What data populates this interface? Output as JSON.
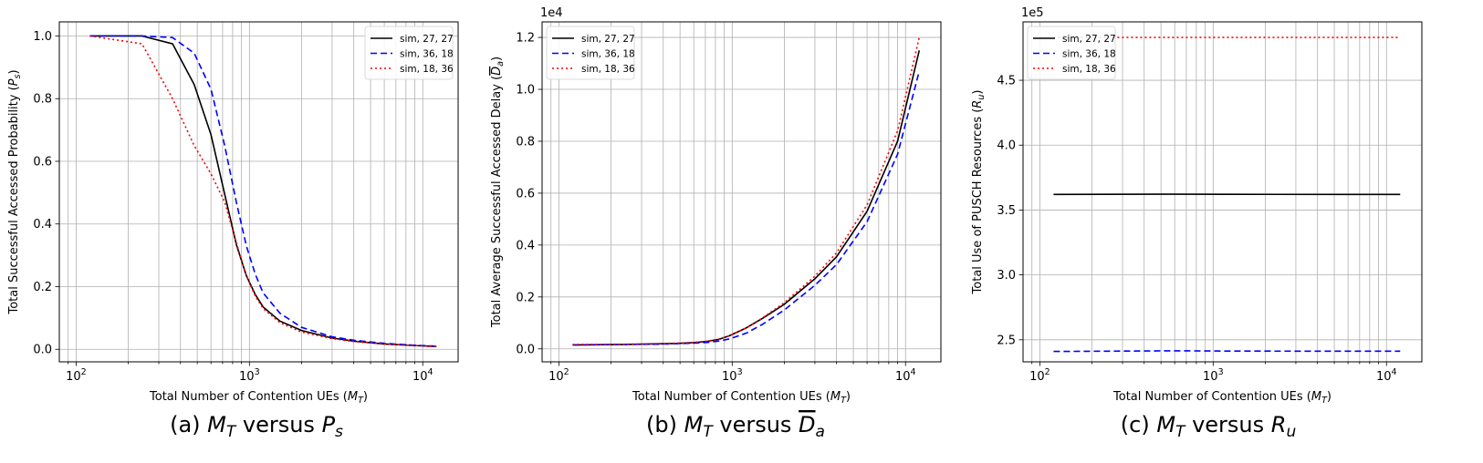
{
  "chart_data": [
    {
      "type": "line",
      "caption": {
        "prefix": "(a) ",
        "a": "M",
        "a_sub": "T",
        "mid": " versus ",
        "b": "P",
        "b_sub": "s",
        "overline_b": false
      },
      "xlabel": {
        "text": "Total Number of Contention UEs (",
        "var": "M",
        "sub": "T",
        "close": ")"
      },
      "ylabel": {
        "text": "Total Successful Accessed Probability (",
        "var": "P",
        "sub": "s",
        "close": ")",
        "overline": false
      },
      "xscale": "log",
      "xlim": [
        80,
        16000
      ],
      "ylim": [
        -0.04,
        1.045
      ],
      "yticks": [
        0.0,
        0.2,
        0.4,
        0.6,
        0.8,
        1.0
      ],
      "ytick_labels": [
        "0.0",
        "0.2",
        "0.4",
        "0.6",
        "0.8",
        "1.0"
      ],
      "xtick_labels": [
        {
          "base": "10",
          "exp": "2"
        },
        {
          "base": "10",
          "exp": "3"
        },
        {
          "base": "10",
          "exp": "4"
        }
      ],
      "y_offset": "",
      "grid": true,
      "legend": "top-right",
      "series": [
        {
          "name": "sim, 27, 27",
          "color": "#000000",
          "dash": "solid",
          "x": [
            120,
            240,
            360,
            480,
            600,
            720,
            840,
            960,
            1080,
            1200,
            1500,
            2000,
            3000,
            4000,
            6000,
            9000,
            12000
          ],
          "y": [
            1.0,
            1.0,
            0.975,
            0.845,
            0.685,
            0.495,
            0.335,
            0.235,
            0.175,
            0.135,
            0.09,
            0.06,
            0.036,
            0.026,
            0.017,
            0.012,
            0.009
          ]
        },
        {
          "name": "sim, 36, 18",
          "color": "#0000ff",
          "dash": "dashed",
          "x": [
            120,
            240,
            360,
            480,
            600,
            720,
            840,
            960,
            1080,
            1200,
            1500,
            2000,
            3000,
            4000,
            6000,
            9000,
            12000
          ],
          "y": [
            1.0,
            1.0,
            0.995,
            0.945,
            0.83,
            0.65,
            0.47,
            0.33,
            0.24,
            0.18,
            0.115,
            0.07,
            0.04,
            0.029,
            0.019,
            0.013,
            0.01
          ]
        },
        {
          "name": "sim, 18, 36",
          "color": "#ff0000",
          "dash": "dotted",
          "x": [
            120,
            240,
            360,
            480,
            600,
            720,
            840,
            960,
            1080,
            1200,
            1500,
            2000,
            3000,
            4000,
            6000,
            9000,
            12000
          ],
          "y": [
            1.0,
            0.975,
            0.8,
            0.65,
            0.56,
            0.47,
            0.34,
            0.235,
            0.17,
            0.13,
            0.085,
            0.055,
            0.034,
            0.025,
            0.017,
            0.012,
            0.009
          ]
        }
      ]
    },
    {
      "type": "line",
      "caption": {
        "prefix": "(b) ",
        "a": "M",
        "a_sub": "T",
        "mid": " versus ",
        "b": "D",
        "b_sub": "a",
        "overline_b": true
      },
      "xlabel": {
        "text": "Total Number of Contention UEs (",
        "var": "M",
        "sub": "T",
        "close": ")"
      },
      "ylabel": {
        "text": "Total Average Successful Accessed Delay (",
        "var": "D",
        "sub": "a",
        "close": ")",
        "overline": true
      },
      "xscale": "log",
      "xlim": [
        80,
        16000
      ],
      "ylim": [
        -0.05,
        1.26
      ],
      "yticks": [
        0.0,
        0.2,
        0.4,
        0.6,
        0.8,
        1.0,
        1.2
      ],
      "ytick_labels": [
        "0.0",
        "0.2",
        "0.4",
        "0.6",
        "0.8",
        "1.0",
        "1.2"
      ],
      "xtick_labels": [
        {
          "base": "10",
          "exp": "2"
        },
        {
          "base": "10",
          "exp": "3"
        },
        {
          "base": "10",
          "exp": "4"
        }
      ],
      "y_offset": "1e4",
      "grid": true,
      "legend": "top-left",
      "series": [
        {
          "name": "sim, 27, 27",
          "color": "#000000",
          "dash": "solid",
          "x": [
            120,
            240,
            360,
            480,
            600,
            720,
            840,
            960,
            1200,
            1500,
            2000,
            3000,
            4000,
            6000,
            9000,
            12000
          ],
          "y": [
            0.015,
            0.017,
            0.019,
            0.021,
            0.024,
            0.029,
            0.037,
            0.05,
            0.08,
            0.118,
            0.172,
            0.27,
            0.355,
            0.53,
            0.8,
            1.15
          ]
        },
        {
          "name": "sim, 36, 18",
          "color": "#0000ff",
          "dash": "dashed",
          "x": [
            120,
            240,
            360,
            480,
            600,
            720,
            840,
            960,
            1200,
            1500,
            2000,
            3000,
            4000,
            6000,
            9000,
            12000
          ],
          "y": [
            0.015,
            0.017,
            0.018,
            0.02,
            0.022,
            0.025,
            0.03,
            0.038,
            0.06,
            0.095,
            0.15,
            0.245,
            0.325,
            0.49,
            0.75,
            1.07
          ]
        },
        {
          "name": "sim, 18, 36",
          "color": "#ff0000",
          "dash": "dotted",
          "x": [
            120,
            240,
            360,
            480,
            600,
            720,
            840,
            960,
            1200,
            1500,
            2000,
            3000,
            4000,
            6000,
            9000,
            12000
          ],
          "y": [
            0.017,
            0.018,
            0.02,
            0.022,
            0.025,
            0.03,
            0.038,
            0.05,
            0.08,
            0.12,
            0.178,
            0.28,
            0.37,
            0.555,
            0.84,
            1.2
          ]
        }
      ]
    },
    {
      "type": "line",
      "caption": {
        "prefix": "(c) ",
        "a": "M",
        "a_sub": "T",
        "mid": " versus ",
        "b": "R",
        "b_sub": "u",
        "overline_b": false
      },
      "xlabel": {
        "text": "Total Number of Contention UEs (",
        "var": "M",
        "sub": "T",
        "close": ")"
      },
      "ylabel": {
        "text": "Total Use of PUSCH Resources (",
        "var": "R",
        "sub": "u",
        "close": ")",
        "overline": false
      },
      "xscale": "log",
      "xlim": [
        80,
        16000
      ],
      "ylim": [
        2.33,
        4.95
      ],
      "yticks": [
        2.5,
        3.0,
        3.5,
        4.0,
        4.5
      ],
      "ytick_labels": [
        "2.5",
        "3.0",
        "3.5",
        "4.0",
        "4.5"
      ],
      "xtick_labels": [
        {
          "base": "10",
          "exp": "2"
        },
        {
          "base": "10",
          "exp": "3"
        },
        {
          "base": "10",
          "exp": "4"
        }
      ],
      "y_offset": "1e5",
      "grid": true,
      "legend": "top-left",
      "series": [
        {
          "name": "sim, 27, 27",
          "color": "#000000",
          "dash": "solid",
          "x": [
            120,
            600,
            1200,
            6000,
            12000
          ],
          "y": [
            3.62,
            3.622,
            3.621,
            3.62,
            3.62
          ]
        },
        {
          "name": "sim, 36, 18",
          "color": "#0000ff",
          "dash": "dashed",
          "x": [
            120,
            600,
            1200,
            6000,
            12000
          ],
          "y": [
            2.41,
            2.415,
            2.413,
            2.412,
            2.412
          ]
        },
        {
          "name": "sim, 18, 36",
          "color": "#ff0000",
          "dash": "dotted",
          "x": [
            120,
            600,
            1200,
            6000,
            12000
          ],
          "y": [
            4.83,
            4.83,
            4.83,
            4.83,
            4.83
          ]
        }
      ]
    }
  ]
}
